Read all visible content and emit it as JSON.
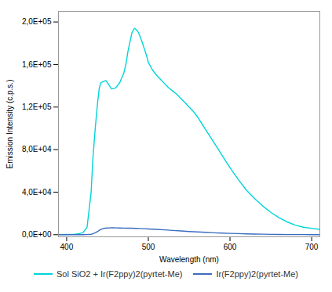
{
  "chart_data": {
    "type": "line",
    "xlabel": "Wavelength (nm)",
    "ylabel": "Emission Intensity (c.p.s.)",
    "xlim": [
      390,
      710
    ],
    "ylim": [
      -2000,
      210000
    ],
    "xticks": [
      400,
      500,
      600,
      700
    ],
    "yticks": [
      {
        "value": 0,
        "label": "0,0E+00"
      },
      {
        "value": 40000,
        "label": "4,0E+04"
      },
      {
        "value": 80000,
        "label": "8,0E+04"
      },
      {
        "value": 120000,
        "label": "1,2E+05"
      },
      {
        "value": 160000,
        "label": "1,6E+05"
      },
      {
        "value": 200000,
        "label": "2,0E+05"
      }
    ],
    "grid": false,
    "legend": "bottom",
    "series": [
      {
        "name": "Sol SiO2 + Ir(F2ppy)2(pyrtet-Me)",
        "color": "#00d4d8",
        "x": [
          390,
          400,
          405,
          410,
          415,
          420,
          425,
          430,
          432,
          435,
          438,
          440,
          442,
          445,
          448,
          450,
          455,
          460,
          465,
          470,
          473,
          475,
          478,
          480,
          483,
          485,
          488,
          490,
          492,
          495,
          498,
          500,
          505,
          510,
          515,
          520,
          525,
          530,
          535,
          540,
          545,
          550,
          555,
          560,
          565,
          570,
          575,
          580,
          585,
          590,
          595,
          600,
          610,
          620,
          630,
          640,
          650,
          660,
          670,
          680,
          690,
          700,
          710
        ],
        "values": [
          100,
          200,
          300,
          500,
          900,
          2000,
          7000,
          40000,
          70000,
          100000,
          125000,
          138000,
          143000,
          144000,
          145000,
          143000,
          137000,
          138000,
          143000,
          152000,
          162000,
          172000,
          183000,
          190000,
          194000,
          193000,
          190000,
          186000,
          182000,
          175000,
          168000,
          162000,
          155000,
          150000,
          146000,
          142000,
          138000,
          135000,
          132000,
          128000,
          124000,
          120000,
          116000,
          111000,
          105000,
          99000,
          93000,
          87000,
          81000,
          75000,
          69000,
          63000,
          52000,
          42000,
          34000,
          27000,
          21000,
          16000,
          12000,
          9000,
          7000,
          6000,
          5000
        ]
      },
      {
        "name": "Ir(F2ppy)2(pyrtet-Me)",
        "color": "#3a6dbf",
        "x": [
          390,
          400,
          410,
          420,
          425,
          430,
          432,
          435,
          438,
          440,
          443,
          445,
          447,
          450,
          453,
          455,
          458,
          460,
          465,
          470,
          475,
          480,
          485,
          490,
          495,
          500,
          510,
          520,
          530,
          540,
          550,
          560,
          570,
          580,
          590,
          600,
          610,
          620,
          630,
          640,
          650,
          660,
          670,
          680,
          690,
          700,
          710
        ],
        "values": [
          0,
          0,
          0,
          0,
          100,
          400,
          800,
          1800,
          3000,
          4200,
          5200,
          5800,
          6100,
          6300,
          6400,
          6450,
          6450,
          6400,
          6300,
          6200,
          6100,
          6050,
          5950,
          5800,
          5600,
          5400,
          5000,
          4500,
          4000,
          3500,
          3000,
          2600,
          2200,
          1800,
          1500,
          1200,
          1000,
          800,
          600,
          450,
          300,
          200,
          150,
          100,
          80,
          60,
          40
        ]
      }
    ]
  }
}
